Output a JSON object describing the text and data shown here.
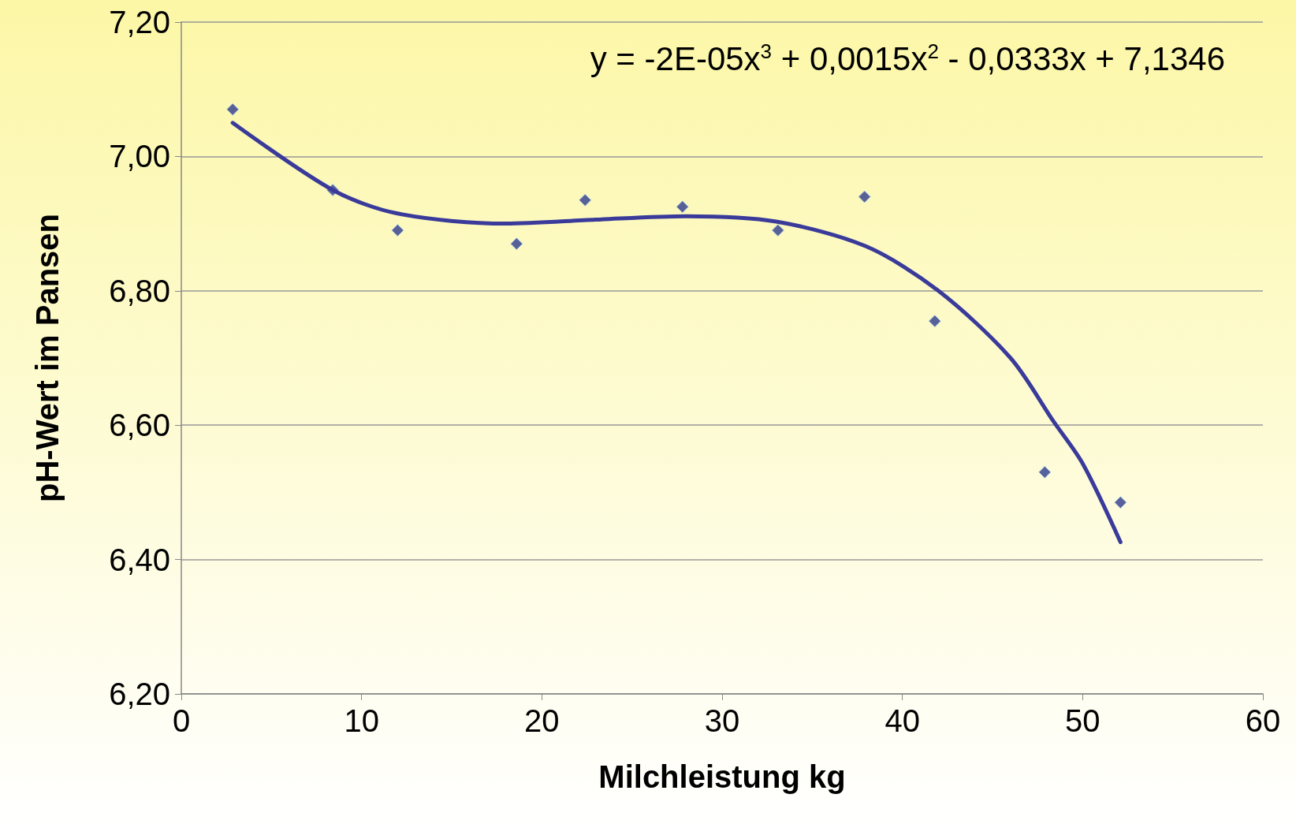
{
  "chart_data": {
    "type": "scatter",
    "xlabel": "Milchleistung kg",
    "ylabel": "pH-Wert im Pansen",
    "annotations": [
      "y = -2E-05x$^{3}$ + 0,0015x$^{2}$ - 0,0333x + 7,1346"
    ],
    "series": [
      {
        "color": "#2e3a8c",
        "marker": "diamond",
        "x": [
          2.85,
          8.4,
          12.0,
          18.6,
          22.4,
          27.8,
          33.1,
          37.9,
          41.8,
          47.9,
          52.1
        ],
        "values": [
          7.07,
          6.95,
          6.89,
          6.87,
          6.935,
          6.925,
          6.89,
          6.94,
          6.755,
          6.53,
          6.485
        ]
      },
      {
        "type": "line",
        "color": "#3a3a9a",
        "marker": "none",
        "line_style": "solid",
        "x": [
          2.85,
          8.4,
          12,
          18,
          23,
          28,
          33,
          38,
          42,
          46,
          48.4,
          50,
          52.1
        ],
        "values": [
          7.05,
          6.95,
          6.915,
          6.9,
          6.906,
          6.911,
          6.903,
          6.866,
          6.8,
          6.7,
          6.605,
          6.543,
          6.426
        ]
      }
    ],
    "xlim": [
      0,
      60
    ],
    "xticks": [
      0,
      10,
      20,
      30,
      40,
      50,
      60
    ],
    "ylim": [
      6.2,
      7.2
    ],
    "yticks": [
      {
        "value": 6.2,
        "label": "6,20"
      },
      {
        "value": 6.4,
        "label": "6,40"
      },
      {
        "value": 6.6,
        "label": "6,60"
      },
      {
        "value": 6.8,
        "label": "6,80"
      },
      {
        "value": 7.0,
        "label": "7,00"
      },
      {
        "value": 7.2,
        "label": "7,20"
      }
    ],
    "grid": "y"
  }
}
